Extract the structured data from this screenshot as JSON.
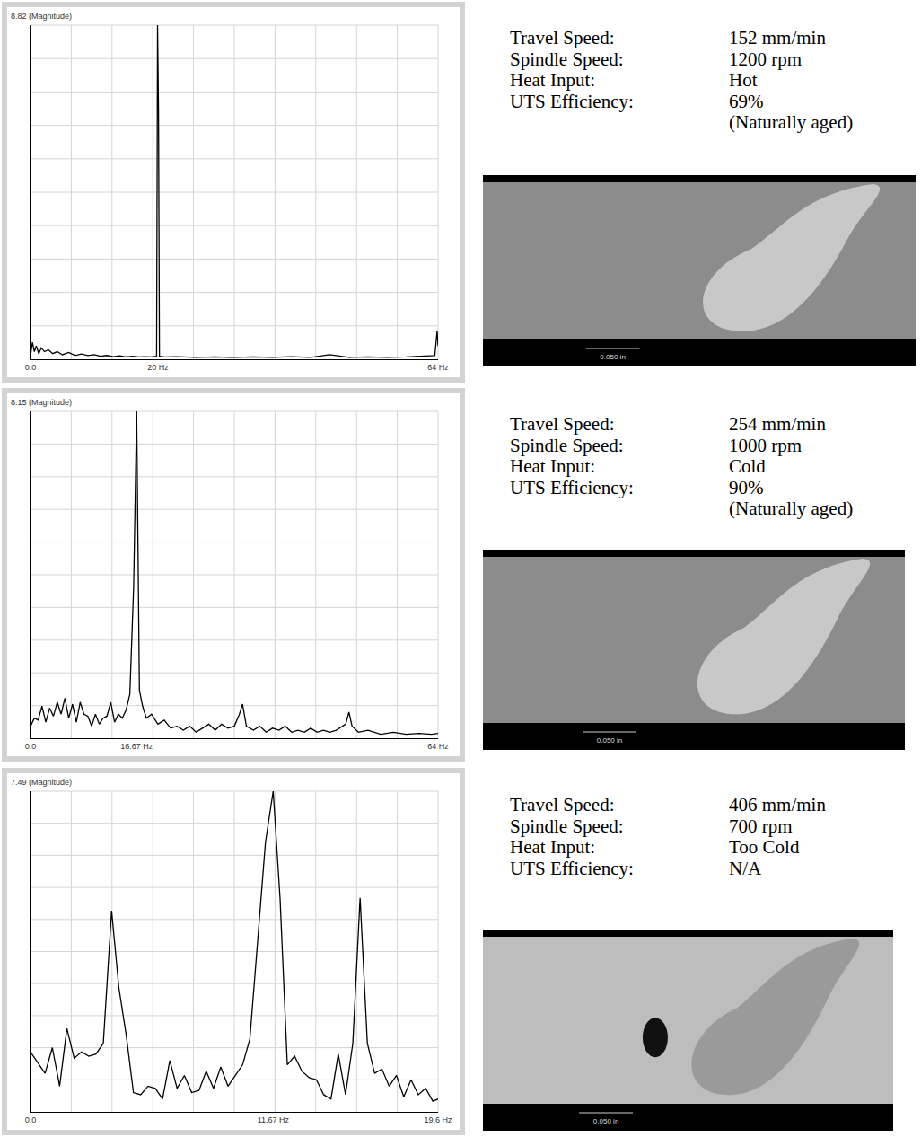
{
  "chart_data": [
    {
      "type": "line",
      "ylabel": "8.82 (Magnitude)",
      "color": "#000000",
      "grid": true,
      "tick_labels": "x",
      "xlim": [
        0,
        64
      ],
      "xticks": [
        {
          "value": 0,
          "label": "0.0"
        },
        {
          "value": 20,
          "label": "20 Hz"
        },
        {
          "value": 64,
          "label": "64 Hz"
        }
      ],
      "ylim": [
        0,
        8.82
      ],
      "x": [
        0,
        0.3,
        0.6,
        0.9,
        1.3,
        1.7,
        2.2,
        2.8,
        3.5,
        4.2,
        5,
        6,
        7,
        8,
        9,
        10,
        11,
        12,
        13,
        14,
        15,
        16,
        17,
        18,
        19,
        19.8,
        19.95,
        20.1,
        20.25,
        21,
        23,
        26,
        29,
        32,
        35,
        38,
        41,
        44,
        47,
        50,
        53,
        56,
        59,
        62,
        63.5,
        63.85,
        64
      ],
      "values": [
        0.1,
        0.45,
        0.2,
        0.35,
        0.15,
        0.3,
        0.2,
        0.25,
        0.15,
        0.2,
        0.12,
        0.18,
        0.1,
        0.14,
        0.1,
        0.12,
        0.08,
        0.1,
        0.07,
        0.09,
        0.06,
        0.08,
        0.06,
        0.07,
        0.06,
        0.08,
        8.82,
        6.6,
        0.08,
        0.06,
        0.07,
        0.05,
        0.06,
        0.05,
        0.06,
        0.05,
        0.07,
        0.05,
        0.12,
        0.05,
        0.06,
        0.05,
        0.06,
        0.08,
        0.1,
        0.75,
        0.35
      ]
    },
    {
      "type": "line",
      "ylabel": "8.15 (Magnitude)",
      "color": "#000000",
      "grid": true,
      "tick_labels": "x",
      "xlim": [
        0,
        64
      ],
      "xticks": [
        {
          "value": 0,
          "label": "0.0"
        },
        {
          "value": 16.67,
          "label": "16.67 Hz"
        },
        {
          "value": 64,
          "label": "64 Hz"
        }
      ],
      "ylim": [
        0,
        8.15
      ],
      "x": [
        0,
        0.6,
        1.2,
        1.8,
        2.4,
        3.0,
        3.6,
        4.2,
        4.8,
        5.4,
        6.0,
        6.6,
        7.2,
        7.8,
        8.4,
        9.0,
        9.6,
        10.2,
        10.8,
        11.4,
        12.0,
        12.6,
        13.2,
        13.8,
        14.4,
        15.0,
        15.6,
        16.2,
        16.67,
        17.1,
        17.6,
        18.2,
        19,
        20,
        21,
        22,
        23,
        24,
        25,
        26,
        27,
        28,
        29,
        30,
        31,
        32,
        32.8,
        33.3,
        33.9,
        35,
        36,
        37,
        38,
        39,
        40,
        41,
        42,
        43,
        44,
        45,
        46,
        47,
        48,
        49.5,
        50,
        50.5,
        51.5,
        53,
        55,
        57,
        59,
        61,
        63,
        64
      ],
      "values": [
        0.3,
        0.5,
        0.45,
        0.8,
        0.4,
        0.75,
        0.55,
        0.9,
        0.6,
        1.0,
        0.5,
        0.85,
        0.4,
        0.9,
        0.6,
        0.55,
        0.3,
        0.6,
        0.35,
        0.5,
        0.55,
        0.9,
        0.4,
        0.6,
        0.5,
        0.7,
        1.1,
        3.8,
        8.15,
        1.2,
        0.8,
        0.5,
        0.6,
        0.35,
        0.45,
        0.25,
        0.3,
        0.2,
        0.3,
        0.15,
        0.25,
        0.35,
        0.2,
        0.35,
        0.25,
        0.3,
        0.6,
        0.85,
        0.3,
        0.2,
        0.3,
        0.15,
        0.25,
        0.2,
        0.3,
        0.15,
        0.2,
        0.15,
        0.25,
        0.15,
        0.2,
        0.15,
        0.2,
        0.35,
        0.65,
        0.3,
        0.15,
        0.2,
        0.1,
        0.15,
        0.1,
        0.12,
        0.1,
        0.12
      ]
    },
    {
      "type": "line",
      "ylabel": "7.49 (Magnitude)",
      "color": "#000000",
      "grid": true,
      "tick_labels": "x",
      "xlim": [
        0,
        19.6
      ],
      "xticks": [
        {
          "value": 0,
          "label": "0.0"
        },
        {
          "value": 11.67,
          "label": "11.67 Hz"
        },
        {
          "value": 19.6,
          "label": "19.6 Hz"
        }
      ],
      "ylim": [
        0,
        7.49
      ],
      "x": [
        0,
        0.35,
        0.7,
        1.05,
        1.4,
        1.75,
        2.1,
        2.45,
        2.8,
        3.15,
        3.5,
        3.9,
        4.25,
        4.6,
        4.95,
        5.3,
        5.65,
        6.0,
        6.35,
        6.7,
        7.05,
        7.4,
        7.75,
        8.1,
        8.45,
        8.8,
        9.15,
        9.5,
        9.85,
        10.2,
        10.55,
        10.9,
        11.3,
        11.67,
        12.0,
        12.35,
        12.7,
        13.05,
        13.4,
        13.75,
        14.1,
        14.45,
        14.8,
        15.15,
        15.5,
        15.85,
        16.2,
        16.55,
        16.9,
        17.25,
        17.6,
        17.95,
        18.3,
        18.65,
        19.0,
        19.35,
        19.6
      ],
      "values": [
        1.4,
        1.15,
        0.9,
        1.5,
        0.6,
        1.95,
        1.25,
        1.4,
        1.3,
        1.35,
        1.6,
        4.7,
        2.9,
        1.8,
        0.45,
        0.4,
        0.6,
        0.55,
        0.3,
        1.2,
        0.55,
        0.85,
        0.45,
        0.5,
        0.95,
        0.55,
        1.05,
        0.6,
        0.85,
        1.1,
        1.7,
        3.8,
        6.3,
        7.49,
        5.0,
        1.1,
        1.3,
        0.95,
        0.8,
        0.75,
        0.4,
        0.3,
        1.35,
        0.4,
        1.6,
        5.0,
        1.6,
        0.9,
        1.0,
        0.6,
        0.85,
        0.35,
        0.75,
        0.4,
        0.55,
        0.25,
        0.3
      ]
    }
  ],
  "panels": [
    {
      "fields": [
        {
          "label": "Travel Speed:",
          "value": "152 mm/min"
        },
        {
          "label": "Spindle Speed:",
          "value": "1200 rpm"
        },
        {
          "label": "Heat Input:",
          "value": "Hot"
        },
        {
          "label": "UTS Efficiency:",
          "value": "69%"
        }
      ],
      "note": "(Naturally aged)",
      "scale_bar": "0.050 in"
    },
    {
      "fields": [
        {
          "label": "Travel Speed:",
          "value": "254 mm/min"
        },
        {
          "label": "Spindle Speed:",
          "value": "1000 rpm"
        },
        {
          "label": "Heat Input:",
          "value": "Cold"
        },
        {
          "label": "UTS Efficiency:",
          "value": "90%"
        }
      ],
      "note": "(Naturally aged)",
      "scale_bar": "0.050 in"
    },
    {
      "fields": [
        {
          "label": "Travel Speed:",
          "value": "406 mm/min"
        },
        {
          "label": "Spindle Speed:",
          "value": "700 rpm"
        },
        {
          "label": "Heat Input:",
          "value": "Too Cold"
        },
        {
          "label": "UTS Efficiency:",
          "value": "N/A"
        }
      ],
      "scale_bar": "0.050 in"
    }
  ]
}
